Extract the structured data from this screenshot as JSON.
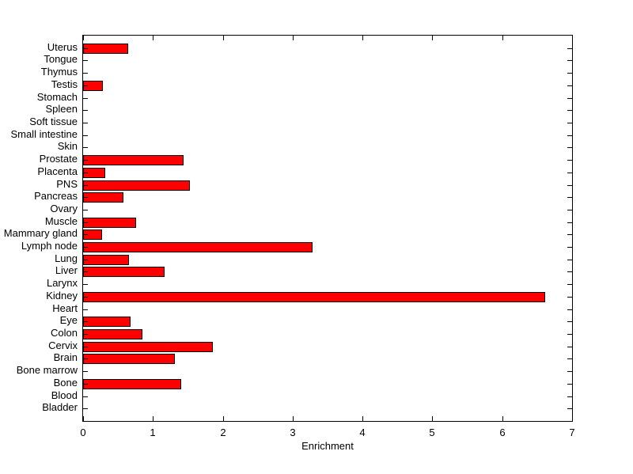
{
  "chart_data": {
    "type": "bar",
    "orientation": "horizontal",
    "title": "",
    "xlabel": "Enrichment",
    "categories": [
      "Uterus",
      "Tongue",
      "Thymus",
      "Testis",
      "Stomach",
      "Spleen",
      "Soft tissue",
      "Small intestine",
      "Skin",
      "Prostate",
      "Placenta",
      "PNS",
      "Pancreas",
      "Ovary",
      "Muscle",
      "Mammary gland",
      "Lymph node",
      "Lung",
      "Liver",
      "Larynx",
      "Kidney",
      "Heart",
      "Eye",
      "Colon",
      "Cervix",
      "Brain",
      "Bone marrow",
      "Bone",
      "Blood",
      "Bladder"
    ],
    "values": [
      0.64,
      0,
      0,
      0.28,
      0,
      0,
      0,
      0,
      0,
      1.44,
      0.32,
      1.53,
      0.58,
      0,
      0.76,
      0.27,
      3.29,
      0.66,
      1.17,
      0,
      6.62,
      0,
      0.68,
      0.85,
      1.86,
      1.31,
      0,
      1.4,
      0,
      0
    ],
    "xlim": [
      0,
      7
    ],
    "ylim": [
      0,
      31
    ],
    "x_ticks": [
      "0",
      "1",
      "2",
      "3",
      "4",
      "5",
      "6",
      "7"
    ],
    "grid": false,
    "legend": "none",
    "box": true,
    "colors": {
      "bar_fill": "#ff0000",
      "bar_edge": "#000000",
      "axis": "#000000",
      "text": "#000000",
      "background": "#ffffff"
    }
  }
}
